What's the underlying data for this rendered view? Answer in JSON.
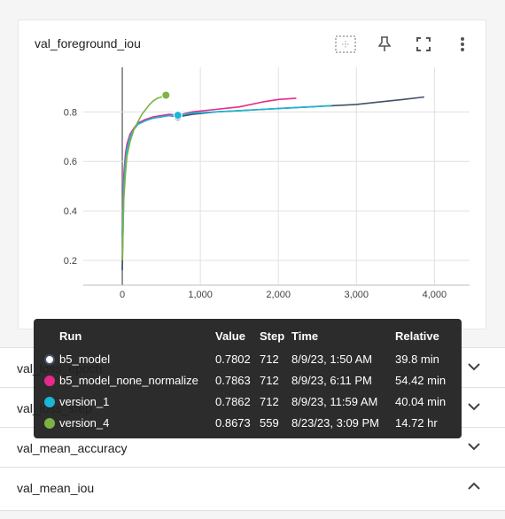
{
  "card": {
    "title": "val_foreground_iou",
    "icons": [
      "fit-domain-icon",
      "pin-icon",
      "fullscreen-icon",
      "more-vert-icon"
    ]
  },
  "chart_data": {
    "type": "line",
    "title": "val_foreground_iou",
    "xlim": [
      -500,
      4450
    ],
    "ylim": [
      0.1,
      0.98
    ],
    "x_ticks": [
      "0",
      "1,000",
      "2,000",
      "3,000",
      "4,000"
    ],
    "y_ticks": [
      "0.2",
      "0.4",
      "0.6",
      "0.8"
    ],
    "grid": true,
    "series": [
      {
        "name": "b5_model",
        "color": "#425066",
        "x": [
          0,
          20,
          40,
          60,
          100,
          150,
          200,
          300,
          400,
          500,
          600,
          712,
          900,
          1200,
          1500,
          1800,
          2100,
          2400,
          2700,
          3000,
          3300,
          3600,
          3870
        ],
        "y": [
          0.16,
          0.5,
          0.6,
          0.65,
          0.7,
          0.73,
          0.75,
          0.765,
          0.775,
          0.78,
          0.785,
          0.7802,
          0.79,
          0.8,
          0.805,
          0.81,
          0.815,
          0.82,
          0.825,
          0.83,
          0.84,
          0.85,
          0.86
        ]
      },
      {
        "name": "b5_model_none_normalize",
        "color": "#e7298a",
        "x": [
          0,
          20,
          40,
          60,
          100,
          150,
          200,
          300,
          400,
          500,
          600,
          712,
          900,
          1200,
          1500,
          1800,
          2000,
          2230
        ],
        "y": [
          0.3,
          0.55,
          0.63,
          0.67,
          0.71,
          0.735,
          0.755,
          0.77,
          0.78,
          0.785,
          0.79,
          0.7863,
          0.8,
          0.81,
          0.82,
          0.84,
          0.85,
          0.855
        ]
      },
      {
        "name": "version_1",
        "color": "#1ab6d6",
        "x": [
          0,
          20,
          40,
          60,
          100,
          150,
          200,
          300,
          400,
          500,
          600,
          712,
          900,
          1200,
          1500,
          1800,
          2100,
          2400,
          2680
        ],
        "y": [
          0.3,
          0.5,
          0.6,
          0.65,
          0.7,
          0.73,
          0.75,
          0.765,
          0.775,
          0.78,
          0.785,
          0.7862,
          0.795,
          0.8,
          0.805,
          0.81,
          0.815,
          0.82,
          0.825
        ]
      },
      {
        "name": "version_4",
        "color": "#7cb342",
        "x": [
          0,
          20,
          40,
          60,
          100,
          150,
          200,
          250,
          300,
          350,
          400,
          450,
          500,
          559
        ],
        "y": [
          0.2,
          0.45,
          0.55,
          0.62,
          0.68,
          0.73,
          0.76,
          0.79,
          0.81,
          0.83,
          0.845,
          0.855,
          0.86,
          0.8673
        ]
      }
    ]
  },
  "tooltip": {
    "headers": {
      "run": "Run",
      "value": "Value",
      "step": "Step",
      "time": "Time",
      "relative": "Relative"
    },
    "rows": [
      {
        "run": "b5_model",
        "value": "0.7802",
        "step": "712",
        "time": "8/9/23, 1:50 AM",
        "relative": "39.8 min",
        "color": "#ffffff",
        "ring": "#425066"
      },
      {
        "run": "b5_model_none_normalize",
        "value": "0.7863",
        "step": "712",
        "time": "8/9/23, 6:11 PM",
        "relative": "54.42 min",
        "color": "#e7298a",
        "ring": "#e7298a"
      },
      {
        "run": "version_1",
        "value": "0.7862",
        "step": "712",
        "time": "8/9/23, 11:59 AM",
        "relative": "40.04 min",
        "color": "#1ab6d6",
        "ring": "#1ab6d6"
      },
      {
        "run": "version_4",
        "value": "0.8673",
        "step": "559",
        "time": "8/23/23, 3:09 PM",
        "relative": "14.72 hr",
        "color": "#7cb342",
        "ring": "#7cb342"
      }
    ]
  },
  "sections": [
    {
      "label": "val_loss_epoch",
      "expanded": false
    },
    {
      "label": "val_loss_step",
      "expanded": false
    },
    {
      "label": "val_mean_accuracy",
      "expanded": false
    },
    {
      "label": "val_mean_iou",
      "expanded": true
    }
  ]
}
